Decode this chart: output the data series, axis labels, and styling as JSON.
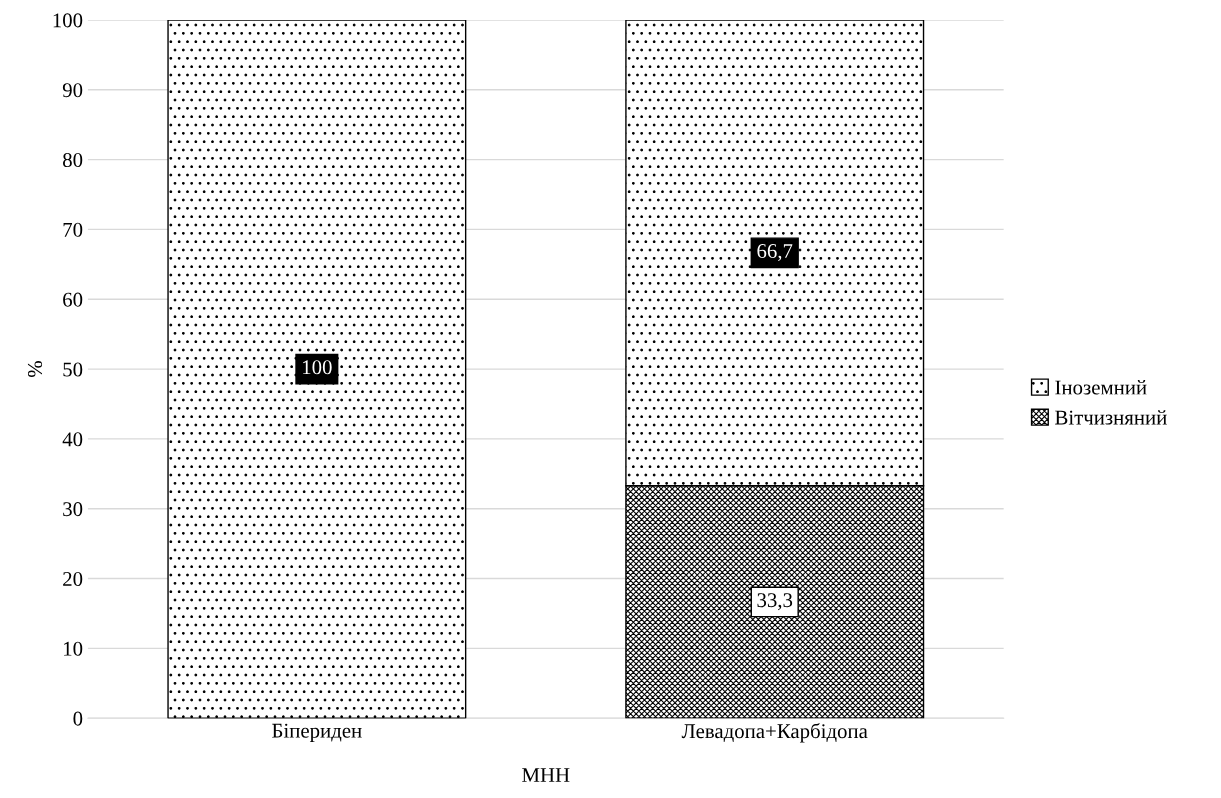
{
  "chart_data": {
    "type": "bar",
    "stacked": true,
    "xlabel": "МНН",
    "ylabel": "%",
    "categories": [
      "Біпериден",
      "Левадопа+Карбідопа"
    ],
    "series": [
      {
        "name": "Вітчизняний",
        "color": "#000000",
        "values": [
          0,
          33.3
        ],
        "value_labels": [
          null,
          "33,3"
        ]
      },
      {
        "name": "Іноземний",
        "color": "#000000",
        "values": [
          100,
          66.7
        ],
        "value_labels": [
          "100",
          "66,7"
        ]
      }
    ],
    "ylim": [
      0,
      100
    ],
    "yticks": [
      0,
      10,
      20,
      30,
      40,
      50,
      60,
      70,
      80,
      90,
      100
    ],
    "grid": "y",
    "legend": "right"
  }
}
